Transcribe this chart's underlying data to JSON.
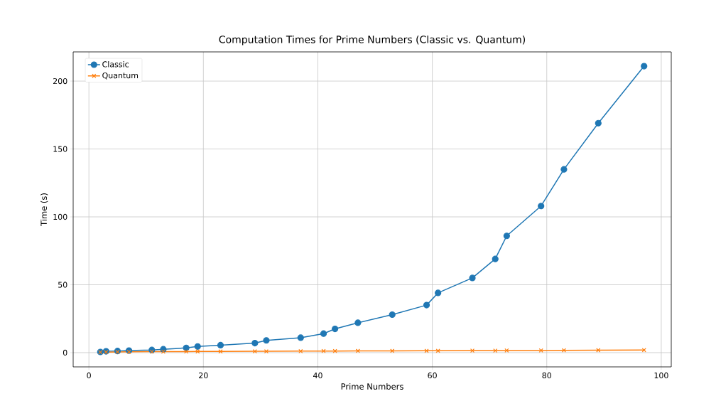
{
  "chart_data": {
    "type": "line",
    "title": "Computation Times for Prime Numbers (Classic vs. Quantum)",
    "xlabel": "Prime Numbers",
    "ylabel": "Time (s)",
    "x": [
      2,
      3,
      5,
      7,
      11,
      13,
      17,
      19,
      23,
      29,
      31,
      37,
      41,
      43,
      47,
      53,
      59,
      61,
      67,
      71,
      73,
      79,
      83,
      89,
      97
    ],
    "series": [
      {
        "name": "Classic",
        "color": "#1f77b4",
        "marker": "circle",
        "values": [
          0.5,
          1,
          1.2,
          1.5,
          2,
          2.5,
          3.5,
          4.5,
          5.5,
          7,
          9,
          11,
          14,
          17.5,
          22,
          28,
          35,
          44,
          55,
          69,
          86,
          108,
          135,
          169,
          211
        ]
      },
      {
        "name": "Quantum",
        "color": "#ff7f0e",
        "marker": "cross",
        "values": [
          0.3,
          0.4,
          0.5,
          0.6,
          0.7,
          0.7,
          0.8,
          0.9,
          0.9,
          1,
          1,
          1.1,
          1.2,
          1.2,
          1.3,
          1.3,
          1.4,
          1.4,
          1.5,
          1.5,
          1.6,
          1.6,
          1.7,
          1.8,
          1.9
        ]
      }
    ],
    "xlim": [
      -2.75,
      101.75
    ],
    "ylim": [
      -10.5,
      221.5
    ],
    "xticks": [
      0,
      20,
      40,
      60,
      80,
      100
    ],
    "yticks": [
      0,
      50,
      100,
      150,
      200
    ],
    "grid": true,
    "legend": "top left",
    "line_style": "solid"
  }
}
